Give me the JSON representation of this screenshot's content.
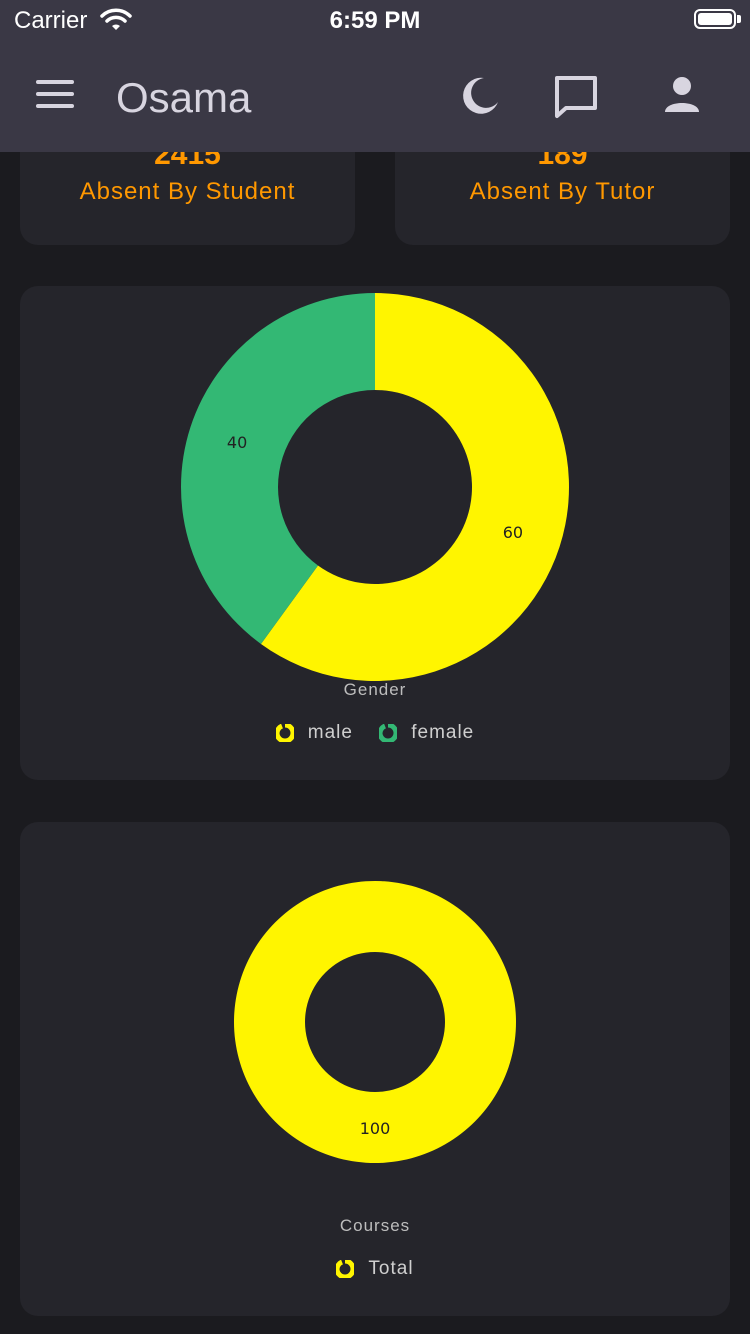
{
  "status_bar": {
    "carrier": "Carrier",
    "time": "6:59 PM"
  },
  "app_bar": {
    "title": "Osama",
    "icons": [
      "menu-icon",
      "moon-icon",
      "chat-icon",
      "user-icon"
    ]
  },
  "stats": [
    {
      "value": "2415",
      "label": "Absent By Student"
    },
    {
      "value": "189",
      "label": "Absent By Tutor"
    }
  ],
  "colors": {
    "accent": "#ff9800",
    "yellow": "#fff500",
    "green": "#33b874",
    "appbar": "#3a3845",
    "card": "#25252b"
  },
  "chart_data": [
    {
      "type": "pie",
      "title": "Gender",
      "categories": [
        "male",
        "female"
      ],
      "values": [
        60,
        40
      ],
      "colors": [
        "#fff500",
        "#33b874"
      ],
      "legend": "bottom"
    },
    {
      "type": "pie",
      "title": "Courses",
      "categories": [
        "Total"
      ],
      "values": [
        100
      ],
      "colors": [
        "#fff500"
      ],
      "legend": "bottom"
    }
  ]
}
